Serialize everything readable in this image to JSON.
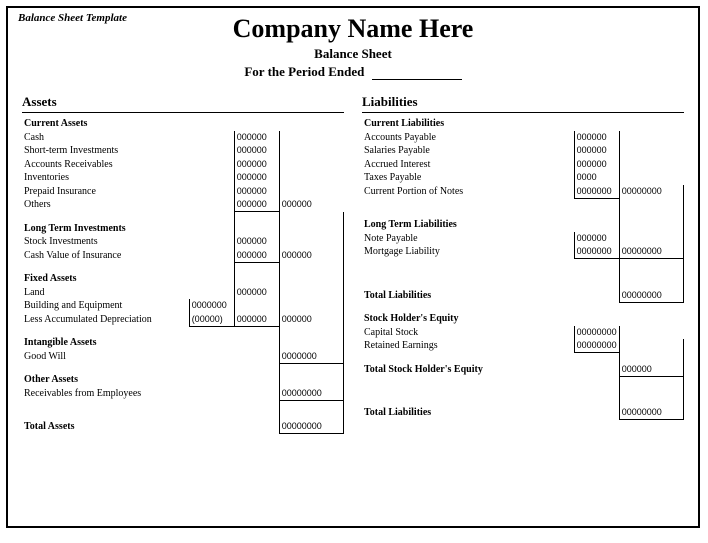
{
  "caption": "Balance Sheet Template",
  "header": {
    "company": "Company Name Here",
    "subtitle": "Balance Sheet",
    "period": "For the Period Ended"
  },
  "assets": {
    "title": "Assets",
    "current": {
      "heading": "Current Assets",
      "cash": {
        "label": "Cash",
        "v2": "000000"
      },
      "sti": {
        "label": "Short-term Investments",
        "v2": "000000"
      },
      "ar": {
        "label": "Accounts Receivables",
        "v2": "000000"
      },
      "inv": {
        "label": "Inventories",
        "v2": "000000"
      },
      "prepaid": {
        "label": "Prepaid Insurance",
        "v2": "000000"
      },
      "others": {
        "label": "Others",
        "v2": "000000",
        "v3": "000000"
      }
    },
    "longterm": {
      "heading": "Long Term Investments",
      "stock": {
        "label": "Stock Investments",
        "v2": "000000"
      },
      "cashval": {
        "label": "Cash Value of Insurance",
        "v2": "000000",
        "v3": "000000"
      }
    },
    "fixed": {
      "heading": "Fixed Assets",
      "land": {
        "label": "Land",
        "v2": "000000"
      },
      "building": {
        "label": "Building and Equipment",
        "v1": "0000000"
      },
      "lessdep": {
        "label": "Less Accumulated Depreciation",
        "v1": "(00000)",
        "v2": "000000",
        "v3": "000000"
      }
    },
    "intangible": {
      "heading": "Intangible Assets",
      "goodwill": {
        "label": "Good Will",
        "v3": "0000000"
      }
    },
    "other": {
      "heading": "Other Assets",
      "recv": {
        "label": "Receivables from Employees",
        "v3": "00000000"
      }
    },
    "total": {
      "label": "Total Assets",
      "v3": "00000000"
    }
  },
  "liabilities": {
    "title": "Liabilities",
    "current": {
      "heading": "Current Liabilities",
      "ap": {
        "label": "Accounts Payable",
        "v2": "000000"
      },
      "sal": {
        "label": "Salaries Payable",
        "v2": "000000"
      },
      "accint": {
        "label": "Accrued Interest",
        "v2": "000000"
      },
      "tax": {
        "label": "Taxes Payable",
        "v2": "0000"
      },
      "notes": {
        "label": "Current Portion of Notes",
        "v2": "0000000",
        "v3": "00000000"
      }
    },
    "longterm": {
      "heading": "Long Term Liabilities",
      "note": {
        "label": "Note Payable",
        "v2": "000000"
      },
      "mort": {
        "label": "Mortgage Liability",
        "v2": "0000000",
        "v3": "00000000"
      }
    },
    "totalliab": {
      "label": "Total Liabilities",
      "v3": "00000000"
    },
    "equity": {
      "heading": "Stock Holder's Equity",
      "capital": {
        "label": "Capital Stock",
        "v2": "00000000"
      },
      "retained": {
        "label": "Retained Earnings",
        "v2": "00000000"
      }
    },
    "totalequity": {
      "label": "Total Stock Holder's Equity",
      "v3": "000000"
    },
    "total": {
      "label": "Total Liabilities",
      "v3": "00000000"
    }
  }
}
